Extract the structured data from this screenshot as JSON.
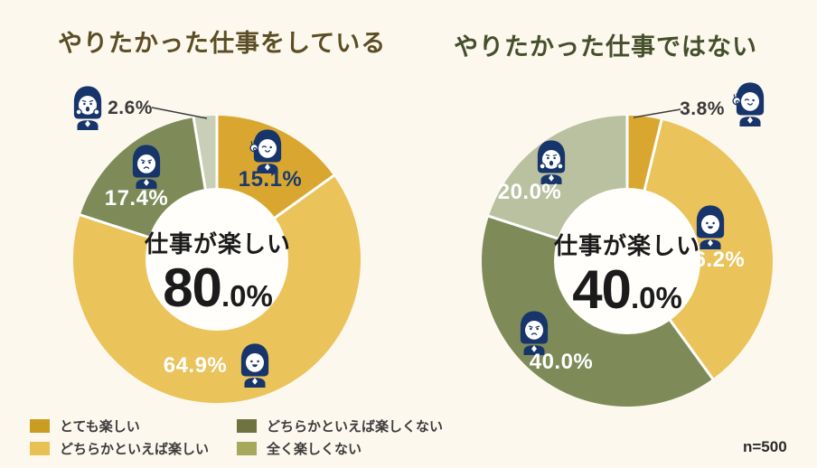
{
  "page": {
    "background": "#FCF8ED"
  },
  "chart_data": [
    {
      "type": "pie",
      "title": "やりたかった仕事をしている",
      "title_color": "#5B4D24",
      "center_label": "仕事が楽しい",
      "center_value": "80.0%",
      "center_value_main": "80",
      "center_value_sub": ".0%",
      "start_angle_deg": 0,
      "direction": "clockwise",
      "segments": [
        {
          "label": "とても楽しい",
          "value": 15.1,
          "display": "15.1%",
          "color": "#D9A72F",
          "mood": "ok"
        },
        {
          "label": "どちらかといえば楽しい",
          "value": 64.9,
          "display": "64.9%",
          "color": "#EAC35B",
          "mood": "smile"
        },
        {
          "label": "どちらかといえば楽しくない",
          "value": 17.4,
          "display": "17.4%",
          "color": "#7E8B59",
          "mood": "sad"
        },
        {
          "label": "全く楽しくない",
          "value": 2.6,
          "display": "2.6%",
          "color": "#C9CEB6",
          "mood": "shock"
        }
      ]
    },
    {
      "type": "pie",
      "title": "やりたかった仕事ではない",
      "title_color": "#454F2C",
      "center_label": "仕事が楽しい",
      "center_value": "40.0%",
      "center_value_main": "40",
      "center_value_sub": ".0%",
      "start_angle_deg": 0,
      "direction": "clockwise",
      "segments": [
        {
          "label": "とても楽しい",
          "value": 3.8,
          "display": "3.8%",
          "color": "#D9A72F",
          "mood": "ok"
        },
        {
          "label": "どちらかといえば楽しい",
          "value": 36.2,
          "display": "36.2%",
          "color": "#EAC35B",
          "mood": "smile"
        },
        {
          "label": "どちらかといえば楽しくない",
          "value": 40.0,
          "display": "40.0%",
          "color": "#7E8B59",
          "mood": "sad"
        },
        {
          "label": "全く楽しくない",
          "value": 20.0,
          "display": "20.0%",
          "color": "#B9C1A1",
          "mood": "shock"
        }
      ]
    }
  ],
  "legend": {
    "items": [
      {
        "label": "とても楽しい",
        "color": "#C99D22"
      },
      {
        "label": "どちらかといえば楽しい",
        "color": "#E8C153"
      },
      {
        "label": "どちらかといえば楽しくない",
        "color": "#6E7440"
      },
      {
        "label": "全く楽しくない",
        "color": "#A5A95E"
      }
    ]
  },
  "footer": {
    "sample_size": "n=500"
  },
  "style": {
    "callout_label_color": "#3A3A3A",
    "inside_label_color": "#FFFFFF",
    "accent_navy": "#17356B",
    "hole_color": "#FFFEFA"
  }
}
